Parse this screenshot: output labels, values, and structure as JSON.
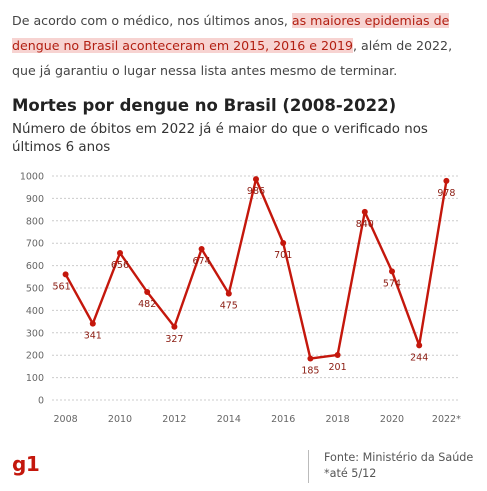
{
  "intro": {
    "before": "De acordo com o médico, nos últimos anos, ",
    "highlight": "as maiores epidemias de dengue no Brasil aconteceram em 2015, 2016 e 2019",
    "after": ", além de 2022, que já garantiu o lugar nessa lista antes mesmo de terminar."
  },
  "chart_data": {
    "type": "line",
    "title": "Mortes por dengue no Brasil (2008-2022)",
    "subtitle": "Número de óbitos em 2022 já é maior do que o verificado nos últimos 6 anos",
    "x": [
      "2008",
      "2009",
      "2010",
      "2011",
      "2012",
      "2013",
      "2014",
      "2015",
      "2016",
      "2017",
      "2018",
      "2019",
      "2020",
      "2021",
      "2022"
    ],
    "values": [
      561,
      341,
      656,
      482,
      327,
      674,
      475,
      986,
      701,
      185,
      201,
      840,
      574,
      244,
      978
    ],
    "x_tick_labels": [
      "2008",
      "2010",
      "2012",
      "2014",
      "2016",
      "2018",
      "2020",
      "2022*"
    ],
    "y_ticks": [
      0,
      100,
      200,
      300,
      400,
      500,
      600,
      700,
      800,
      900,
      1000
    ],
    "ylim": [
      0,
      1000
    ],
    "grid": "horizontal dashed",
    "color": "#c4170c"
  },
  "footer": {
    "logo": "g1",
    "source": "Fonte: Ministério da Saúde",
    "note": "*até 5/12"
  }
}
